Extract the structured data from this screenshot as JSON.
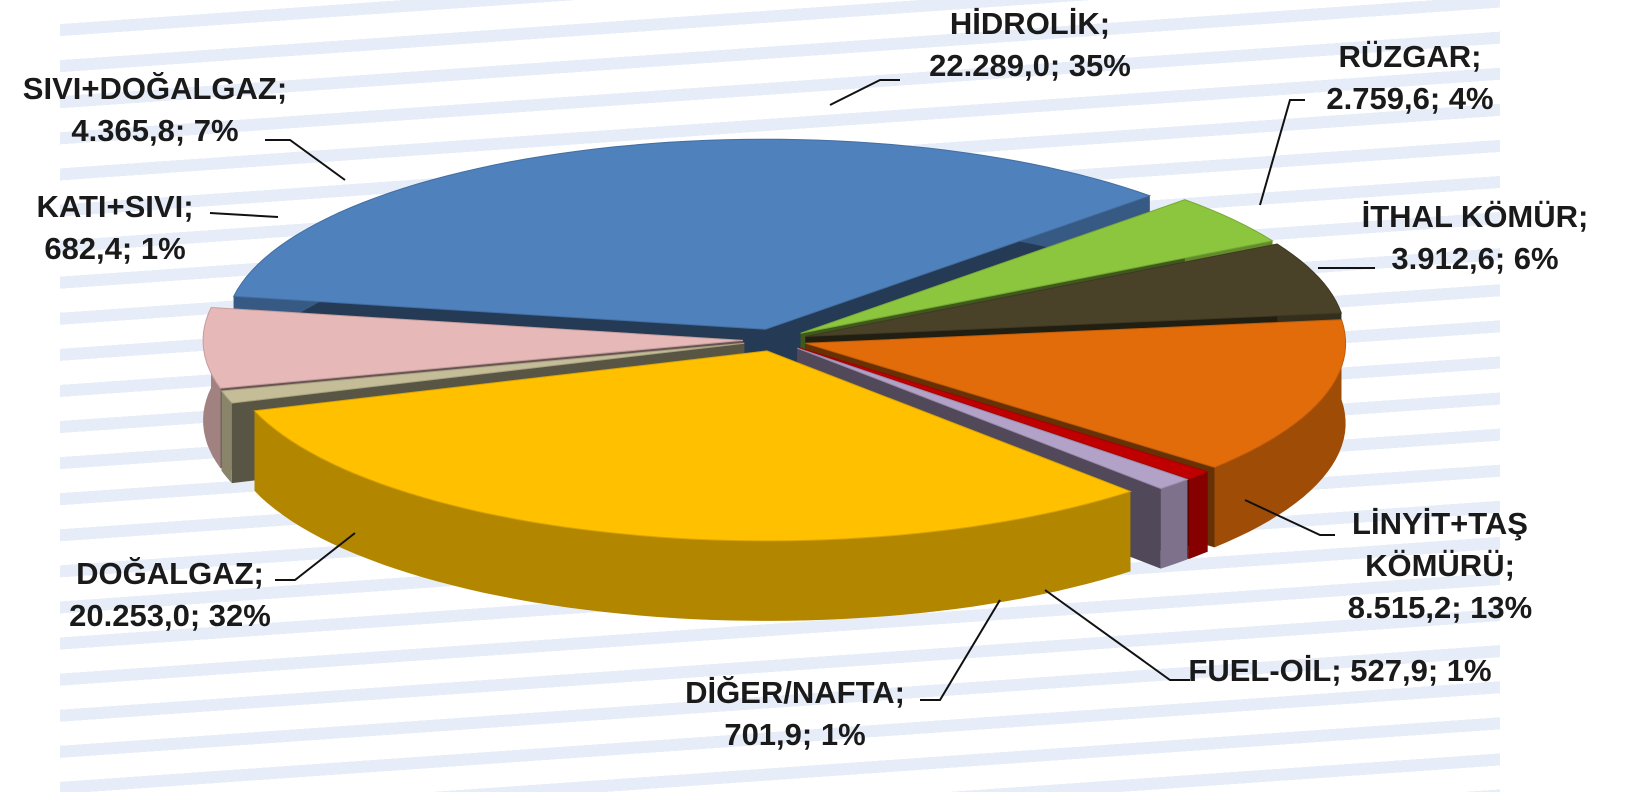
{
  "chart_data": {
    "type": "pie",
    "categories": [
      "HİDROLİK;",
      "RÜZGAR;",
      "İTHAL KÖMÜR;",
      "LİNYİT+TAŞ KÖMÜRÜ;",
      "FUEL-OİL;",
      "DİĞER/NAFTA;",
      "DOĞALGAZ;",
      "KATI+SIVI;",
      "SIVI+DOĞALGAZ;"
    ],
    "values": [
      22289.0,
      2759.6,
      3912.6,
      8515.2,
      527.9,
      701.9,
      20253.0,
      682.4,
      4365.8
    ],
    "value_labels": [
      "22.289,0; 35%",
      "2.759,6; 4%",
      "3.912,6; 6%",
      "8.515,2; 13%",
      "527,9; 1%",
      "701,9; 1%",
      "20.253,0; 32%",
      "682,4; 1%",
      "4.365,8; 7%"
    ],
    "colors": [
      "#4f81bd",
      "#8cc63f",
      "#4a4228",
      "#e36c0a",
      "#c00000",
      "#b3a2c7",
      "#ffc000",
      "#c4bd97",
      "#e6b9b8"
    ]
  }
}
